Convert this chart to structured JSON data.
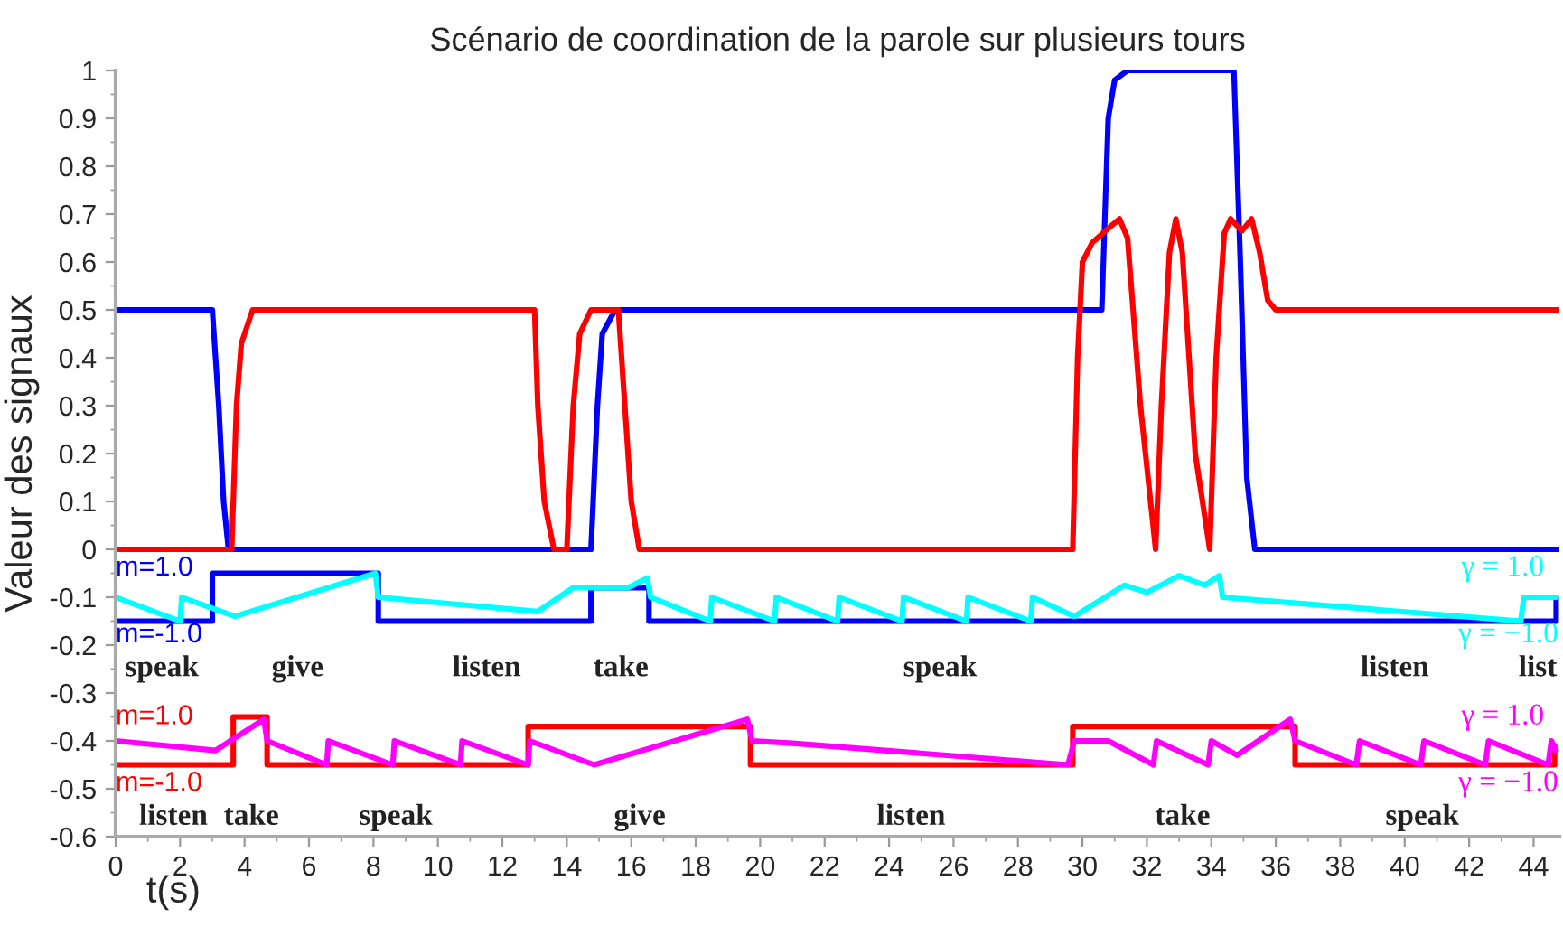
{
  "chart_data": {
    "type": "line",
    "title": "Scénario de coordination de la parole sur plusieurs tours",
    "xlabel": "t(s)",
    "ylabel": "Valeur des signaux",
    "xlim": [
      0,
      44.8
    ],
    "ylim": [
      -0.6,
      1.0
    ],
    "xticks": [
      0,
      2,
      4,
      6,
      8,
      10,
      12,
      14,
      16,
      18,
      20,
      22,
      24,
      26,
      28,
      30,
      32,
      34,
      36,
      38,
      40,
      42,
      44
    ],
    "yticks": [
      -0.6,
      -0.5,
      -0.4,
      -0.3,
      -0.2,
      -0.1,
      0,
      0.1,
      0.2,
      0.3,
      0.4,
      0.5,
      0.6,
      0.7,
      0.8,
      0.9,
      1
    ],
    "grid": false,
    "legend": false,
    "series": [
      {
        "color": "#0000ff",
        "x": [
          0,
          3.0,
          3.2,
          3.35,
          3.5,
          14.75,
          14.95,
          15.1,
          15.5,
          30.6,
          30.8,
          31.0,
          31.4,
          34.7,
          34.9,
          35.1,
          35.35,
          44.8
        ],
        "values": [
          0.5,
          0.5,
          0.3,
          0.1,
          0,
          0,
          0.3,
          0.45,
          0.5,
          0.5,
          0.9,
          0.98,
          1,
          1,
          0.6,
          0.15,
          0,
          0
        ]
      },
      {
        "color": "#ff0000",
        "x": [
          0,
          3.6,
          3.75,
          3.9,
          4.25,
          13.0,
          13.1,
          13.3,
          13.6,
          14.0,
          14.2,
          14.4,
          14.75,
          15.6,
          15.8,
          16.0,
          16.25,
          29.7,
          29.85,
          30.0,
          30.3,
          30.8,
          31.15,
          31.4,
          31.8,
          32.27,
          32.45,
          32.7,
          32.9,
          33.1,
          33.5,
          33.95,
          34.15,
          34.4,
          34.6,
          34.95,
          35.25,
          35.5,
          35.75,
          36.0,
          44.8
        ],
        "values": [
          0,
          0,
          0.3,
          0.43,
          0.5,
          0.5,
          0.3,
          0.1,
          0,
          0,
          0.3,
          0.45,
          0.5,
          0.5,
          0.3,
          0.1,
          0,
          0,
          0.4,
          0.6,
          0.64,
          0.67,
          0.69,
          0.65,
          0.3,
          0,
          0.3,
          0.62,
          0.69,
          0.62,
          0.2,
          0,
          0.4,
          0.66,
          0.69,
          0.665,
          0.69,
          0.62,
          0.52,
          0.5,
          0.5
        ]
      },
      {
        "type": "step",
        "color": "#0000ff",
        "x": [
          0,
          3.0,
          8.15,
          14.75,
          16.55,
          44.7
        ],
        "values": [
          -0.15,
          -0.05,
          -0.15,
          -0.08,
          -0.15,
          -0.1
        ]
      },
      {
        "color": "#00ffff",
        "x": [
          0,
          2.0,
          2.05,
          3.7,
          8.06,
          8.15,
          13.1,
          14.2,
          15.9,
          16.5,
          16.6,
          18.45,
          18.5,
          20.45,
          20.5,
          22.4,
          22.45,
          24.4,
          24.45,
          26.4,
          26.45,
          28.4,
          28.45,
          29.75,
          31.3,
          32.0,
          33.0,
          33.8,
          34.25,
          34.35,
          43.6,
          43.7,
          44.7
        ],
        "values": [
          -0.1,
          -0.15,
          -0.1,
          -0.14,
          -0.05,
          -0.1,
          -0.13,
          -0.08,
          -0.08,
          -0.06,
          -0.1,
          -0.15,
          -0.1,
          -0.15,
          -0.1,
          -0.15,
          -0.1,
          -0.15,
          -0.1,
          -0.15,
          -0.1,
          -0.15,
          -0.1,
          -0.14,
          -0.075,
          -0.09,
          -0.055,
          -0.075,
          -0.055,
          -0.1,
          -0.15,
          -0.1,
          -0.1
        ]
      },
      {
        "type": "step",
        "color": "#ff0000",
        "x": [
          0,
          3.65,
          4.7,
          12.8,
          19.7,
          29.7,
          36.6,
          44.65
        ],
        "values": [
          -0.45,
          -0.35,
          -0.45,
          -0.37,
          -0.45,
          -0.37,
          -0.45,
          -0.41
        ]
      },
      {
        "color": "#ff00ff",
        "x": [
          0,
          3.1,
          4.6,
          4.7,
          6.55,
          6.6,
          8.6,
          8.65,
          10.7,
          10.75,
          12.8,
          12.85,
          14.85,
          19.6,
          19.75,
          21.0,
          29.55,
          29.75,
          30.8,
          32.2,
          32.3,
          33.9,
          34.0,
          34.8,
          36.45,
          36.6,
          38.5,
          38.6,
          40.5,
          40.6,
          42.5,
          42.6,
          44.45,
          44.55,
          44.7
        ],
        "values": [
          -0.4,
          -0.42,
          -0.355,
          -0.4,
          -0.45,
          -0.4,
          -0.45,
          -0.4,
          -0.45,
          -0.4,
          -0.45,
          -0.4,
          -0.45,
          -0.355,
          -0.4,
          -0.405,
          -0.45,
          -0.4,
          -0.4,
          -0.45,
          -0.4,
          -0.45,
          -0.4,
          -0.43,
          -0.355,
          -0.4,
          -0.45,
          -0.4,
          -0.45,
          -0.4,
          -0.45,
          -0.4,
          -0.45,
          -0.4,
          -0.42
        ]
      }
    ],
    "annotations": [
      "m=1.0",
      "m=-1.0",
      "m=1.0",
      "m=-1.0",
      "γ = 1.0",
      "γ = −1.0",
      "γ = 1.0",
      "γ = −1.0",
      "speak",
      "give",
      "listen",
      "take",
      "speak",
      "listen",
      "list",
      "listen",
      "take",
      "speak",
      "give",
      "listen",
      "take",
      "speak"
    ]
  }
}
